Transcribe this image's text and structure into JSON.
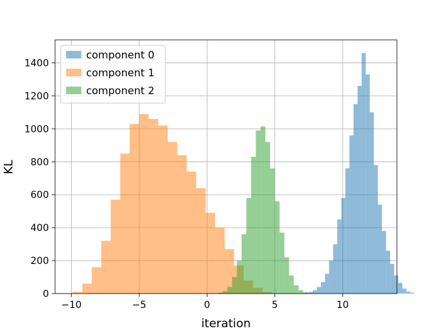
{
  "chart_data": {
    "type": "bar",
    "subtype": "histogram",
    "xlabel": "iteration",
    "ylabel": "KL",
    "xlim": [
      -11.2,
      14.0
    ],
    "ylim": [
      0,
      1540
    ],
    "x_ticks": [
      -10,
      -5,
      0,
      5,
      10
    ],
    "x_tick_labels": [
      "−10",
      "−5",
      "0",
      "5",
      "10"
    ],
    "y_ticks": [
      0,
      200,
      400,
      600,
      800,
      1000,
      1200,
      1400
    ],
    "grid": true,
    "legend_position": "top-left",
    "series": [
      {
        "name": "component 0",
        "color": "#1f77b4",
        "alpha": 0.5,
        "bin_start": 6.9,
        "bin_width": 0.3,
        "values": [
          2,
          5,
          10,
          20,
          40,
          70,
          120,
          200,
          300,
          450,
          580,
          760,
          960,
          1150,
          1260,
          1460,
          1330,
          1100,
          780,
          540,
          380,
          260,
          180,
          110,
          65,
          30,
          12,
          5
        ]
      },
      {
        "name": "component 1",
        "color": "#ff7f0e",
        "alpha": 0.5,
        "bin_start": -9.9,
        "bin_width": 0.7,
        "values": [
          10,
          60,
          160,
          320,
          570,
          850,
          1030,
          1090,
          1060,
          1020,
          920,
          840,
          740,
          640,
          490,
          400,
          270,
          170,
          80,
          35,
          10
        ]
      },
      {
        "name": "component 2",
        "color": "#2ca02c",
        "alpha": 0.5,
        "bin_start": 0.8,
        "bin_width": 0.35,
        "values": [
          5,
          15,
          40,
          100,
          200,
          360,
          580,
          830,
          990,
          1015,
          920,
          760,
          560,
          370,
          220,
          110,
          50,
          20,
          8
        ]
      }
    ]
  }
}
